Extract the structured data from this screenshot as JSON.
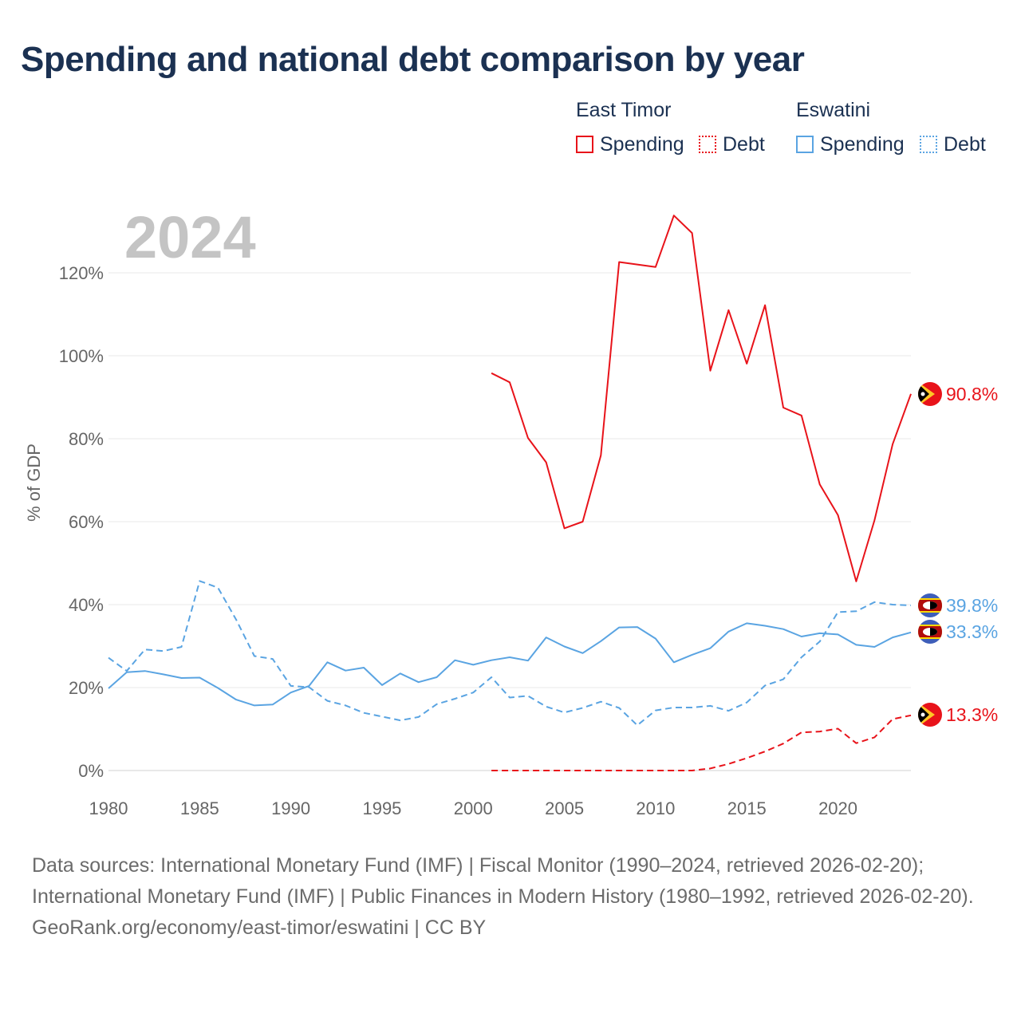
{
  "title": "Spending and national debt comparison by year",
  "legend": {
    "groups": [
      {
        "name": "East Timor",
        "items": [
          "Spending",
          "Debt"
        ]
      },
      {
        "name": "Eswatini",
        "items": [
          "Spending",
          "Debt"
        ]
      }
    ]
  },
  "colors": {
    "east_timor": "#e8131a",
    "eswatini": "#5aa4e2"
  },
  "chart_data": {
    "type": "line",
    "title": "Spending and national debt comparison by year",
    "year_label": "2024",
    "xlabel": "",
    "ylabel": "% of GDP",
    "xlim": [
      1980,
      2024
    ],
    "ylim": [
      0,
      130
    ],
    "x_ticks": [
      1980,
      1985,
      1990,
      1995,
      2000,
      2005,
      2010,
      2015,
      2020
    ],
    "x_tick_labels": [
      "1980",
      "1985",
      "1990",
      "1995",
      "2000",
      "2005",
      "2010",
      "2015",
      "2020"
    ],
    "y_ticks": [
      0,
      20,
      40,
      60,
      80,
      100,
      120
    ],
    "y_tick_labels": [
      "0%",
      "20%",
      "40%",
      "60%",
      "80%",
      "100%",
      "120%"
    ],
    "grid": true,
    "series": [
      {
        "name": "East Timor Spending",
        "country": "East Timor",
        "metric": "Spending",
        "style": "solid",
        "color": "#e8131a",
        "end_label": "90.8%",
        "x": [
          2001,
          2002,
          2003,
          2004,
          2005,
          2006,
          2007,
          2008,
          2009,
          2010,
          2011,
          2012,
          2013,
          2014,
          2015,
          2016,
          2017,
          2018,
          2019,
          2020,
          2021,
          2022,
          2023,
          2024
        ],
        "values": [
          95.8,
          93.6,
          80.2,
          74.3,
          58.4,
          60.0,
          76.0,
          122.6,
          122.0,
          121.4,
          133.8,
          129.6,
          96.4,
          111.0,
          98.1,
          112.2,
          87.5,
          85.6,
          69.0,
          61.6,
          45.6,
          60.3,
          78.7,
          90.8
        ]
      },
      {
        "name": "East Timor Debt",
        "country": "East Timor",
        "metric": "Debt",
        "style": "dashed",
        "color": "#e8131a",
        "end_label": "13.3%",
        "x": [
          2001,
          2002,
          2003,
          2004,
          2005,
          2006,
          2007,
          2008,
          2009,
          2010,
          2011,
          2012,
          2013,
          2014,
          2015,
          2016,
          2017,
          2018,
          2019,
          2020,
          2021,
          2022,
          2023,
          2024
        ],
        "values": [
          0,
          0,
          0,
          0,
          0,
          0,
          0,
          0,
          0,
          0,
          0,
          0,
          0.5,
          1.6,
          3.0,
          4.6,
          6.5,
          9.2,
          9.4,
          10.1,
          6.6,
          8.0,
          12.4,
          13.3
        ]
      },
      {
        "name": "Eswatini Spending",
        "country": "Eswatini",
        "metric": "Spending",
        "style": "solid",
        "color": "#5aa4e2",
        "end_label": "33.3%",
        "x": [
          1980,
          1981,
          1982,
          1983,
          1984,
          1985,
          1986,
          1987,
          1988,
          1989,
          1990,
          1991,
          1992,
          1993,
          1994,
          1995,
          1996,
          1997,
          1998,
          1999,
          2000,
          2001,
          2002,
          2003,
          2004,
          2005,
          2006,
          2007,
          2008,
          2009,
          2010,
          2011,
          2012,
          2013,
          2014,
          2015,
          2016,
          2017,
          2018,
          2019,
          2020,
          2021,
          2022,
          2023,
          2024
        ],
        "values": [
          19.8,
          23.7,
          24.0,
          23.2,
          22.3,
          22.4,
          19.9,
          17.1,
          15.7,
          15.9,
          18.8,
          20.4,
          26.1,
          24.1,
          24.8,
          20.6,
          23.4,
          21.3,
          22.5,
          26.6,
          25.5,
          26.6,
          27.3,
          26.5,
          32.1,
          29.9,
          28.3,
          31.2,
          34.5,
          34.6,
          31.8,
          26.1,
          27.9,
          29.5,
          33.5,
          35.5,
          34.9,
          34.1,
          32.3,
          33.1,
          32.8,
          30.3,
          29.8,
          32.1,
          33.3
        ]
      },
      {
        "name": "Eswatini Debt",
        "country": "Eswatini",
        "metric": "Debt",
        "style": "dashed",
        "color": "#5aa4e2",
        "end_label": "39.8%",
        "x": [
          1980,
          1981,
          1982,
          1983,
          1984,
          1985,
          1986,
          1987,
          1988,
          1989,
          1990,
          1991,
          1992,
          1993,
          1994,
          1995,
          1996,
          1997,
          1998,
          1999,
          2000,
          2001,
          2002,
          2003,
          2004,
          2005,
          2006,
          2007,
          2008,
          2009,
          2010,
          2011,
          2012,
          2013,
          2014,
          2015,
          2016,
          2017,
          2018,
          2019,
          2020,
          2021,
          2022,
          2023,
          2024
        ],
        "values": [
          27.2,
          24.0,
          29.2,
          28.8,
          29.8,
          45.7,
          44.1,
          36.4,
          27.6,
          26.9,
          20.4,
          20.1,
          16.8,
          15.7,
          13.9,
          13.0,
          12.1,
          12.9,
          16.0,
          17.3,
          18.8,
          22.5,
          17.6,
          18.0,
          15.4,
          14.0,
          15.1,
          16.6,
          15.1,
          10.9,
          14.5,
          15.2,
          15.2,
          15.6,
          14.4,
          16.4,
          20.5,
          22.0,
          27.3,
          31.1,
          38.2,
          38.4,
          40.6,
          40.0,
          39.8
        ]
      }
    ]
  },
  "footer": {
    "sources": "Data sources: International Monetary Fund (IMF) | Fiscal Monitor (1990–2024, retrieved 2026-02-20); International Monetary Fund (IMF) | Public Finances in Modern History (1980–1992, retrieved 2026-02-20).",
    "attribution": "GeoRank.org/economy/east-timor/eswatini | CC BY"
  }
}
